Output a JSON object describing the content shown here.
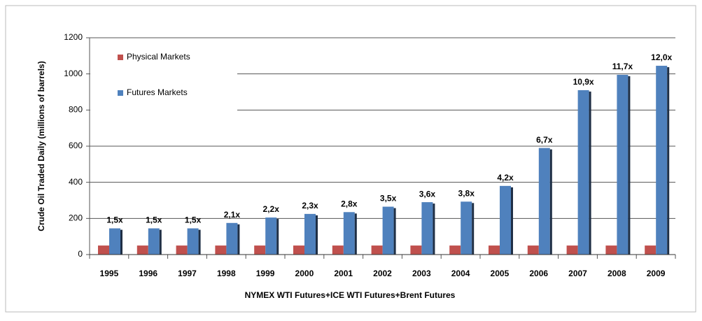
{
  "chart_data": {
    "type": "bar",
    "x_label": "NYMEX  WTI Futures+ICE WTI Futures+Brent Futures",
    "y_label": "Crude Oil Traded Daily (millions of barrels)",
    "categories": [
      "1995",
      "1996",
      "1997",
      "1998",
      "1999",
      "2000",
      "2001",
      "2002",
      "2003",
      "2004",
      "2005",
      "2006",
      "2007",
      "2008",
      "2009"
    ],
    "series": [
      {
        "name": "Physical Markets",
        "color": "#c0504d",
        "values": [
          50,
          50,
          50,
          50,
          50,
          50,
          50,
          50,
          50,
          50,
          50,
          50,
          50,
          50,
          50
        ]
      },
      {
        "name": "Futures Markets",
        "color": "#4f81bd",
        "values": [
          145,
          145,
          145,
          175,
          205,
          225,
          235,
          265,
          290,
          293,
          380,
          590,
          910,
          995,
          1045
        ]
      }
    ],
    "ratio_labels": [
      "1,5x",
      "1,5x",
      "1,5x",
      "2,1x",
      "2,2x",
      "2,3x",
      "2,8x",
      "3,5x",
      "3,6x",
      "3,8x",
      "4,2x",
      "6,7x",
      "10,9x",
      "11,7x",
      "12,0x"
    ],
    "ylim": [
      0,
      1200
    ],
    "yticks": [
      0,
      200,
      400,
      600,
      800,
      1000,
      1200
    ],
    "grid": true,
    "legend": "upper left"
  }
}
